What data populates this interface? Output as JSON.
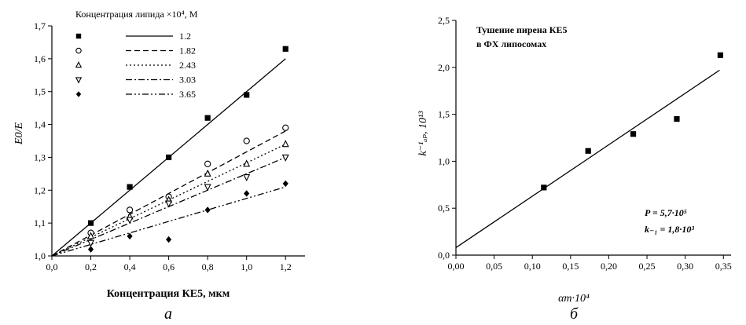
{
  "chart_data": [
    {
      "type": "scatter",
      "panel_label": "а",
      "xlabel": "Концентрация КЕ5, мкм",
      "ylabel": "E0/E",
      "xlim": [
        0.0,
        1.3
      ],
      "ylim": [
        1.0,
        1.7
      ],
      "x_ticks": [
        "0,0",
        "0,2",
        "0,4",
        "0,6",
        "0,8",
        "1,0",
        "1,2"
      ],
      "y_ticks": [
        "1,0",
        "1,1",
        "1,2",
        "1,3",
        "1,4",
        "1,5",
        "1,6",
        "1,7"
      ],
      "legend_title": "Концентрация липида ×10⁴, М",
      "legend_placement": "top-left",
      "grid": false,
      "series": [
        {
          "name": "1.2",
          "marker": "filled-square",
          "line": "solid",
          "x": [
            0.2,
            0.4,
            0.6,
            0.8,
            1.0,
            1.2
          ],
          "y": [
            1.1,
            1.21,
            1.3,
            1.42,
            1.49,
            1.63
          ],
          "fit": [
            [
              0.0,
              1.0
            ],
            [
              1.2,
              1.6
            ]
          ]
        },
        {
          "name": "1.82",
          "marker": "open-circle",
          "line": "dash",
          "x": [
            0.2,
            0.4,
            0.6,
            0.8,
            1.0,
            1.2
          ],
          "y": [
            1.07,
            1.14,
            1.18,
            1.28,
            1.35,
            1.39
          ],
          "fit": [
            [
              0.0,
              1.0
            ],
            [
              1.2,
              1.38
            ]
          ]
        },
        {
          "name": "2.43",
          "marker": "open-triangle-up",
          "line": "dot",
          "x": [
            0.2,
            0.4,
            0.6,
            0.8,
            1.0,
            1.2
          ],
          "y": [
            1.06,
            1.12,
            1.17,
            1.25,
            1.28,
            1.34
          ],
          "fit": [
            [
              0.0,
              1.0
            ],
            [
              1.2,
              1.34
            ]
          ]
        },
        {
          "name": "3.03",
          "marker": "open-triangle-down",
          "line": "dash-dot",
          "x": [
            0.2,
            0.4,
            0.6,
            0.8,
            1.0,
            1.2
          ],
          "y": [
            1.04,
            1.11,
            1.16,
            1.21,
            1.24,
            1.3
          ],
          "fit": [
            [
              0.0,
              1.0
            ],
            [
              1.2,
              1.3
            ]
          ]
        },
        {
          "name": "3.65",
          "marker": "filled-diamond",
          "line": "dash-dot-dot",
          "x": [
            0.2,
            0.4,
            0.6,
            0.8,
            1.0,
            1.2
          ],
          "y": [
            1.02,
            1.06,
            1.05,
            1.14,
            1.19,
            1.22
          ],
          "fit": [
            [
              0.0,
              1.0
            ],
            [
              1.2,
              1.21
            ]
          ]
        }
      ]
    },
    {
      "type": "scatter",
      "panel_label": "б",
      "xlabel": "αm·10⁴",
      "ylabel": "k⁻¹ₐₚ, 10¹³",
      "xlim": [
        0.0,
        0.36
      ],
      "ylim": [
        0.0,
        2.5
      ],
      "x_ticks": [
        "0,00",
        "0,05",
        "0,10",
        "0,15",
        "0,20",
        "0,25",
        "0,30",
        "0,35"
      ],
      "y_ticks": [
        "0,0",
        "0,5",
        "1,0",
        "1,5",
        "2,0",
        "2,5"
      ],
      "title": "Тушение пирена КЕ5 в ФХ липосомах",
      "title_lines": [
        "Тушение пирена КЕ5",
        "в ФХ липосомах"
      ],
      "annotations": [
        "P = 5,7·10⁵",
        "k₋₁ = 1,8·10³"
      ],
      "grid": false,
      "series": [
        {
          "marker": "filled-square",
          "line": "solid",
          "x": [
            0.115,
            0.173,
            0.232,
            0.289,
            0.346
          ],
          "y": [
            0.72,
            1.11,
            1.29,
            1.45,
            2.13
          ],
          "fit": [
            [
              0.0,
              0.08
            ],
            [
              0.345,
              1.97
            ]
          ]
        }
      ]
    }
  ],
  "colors": {
    "ink": "#000000",
    "background": "#ffffff"
  }
}
